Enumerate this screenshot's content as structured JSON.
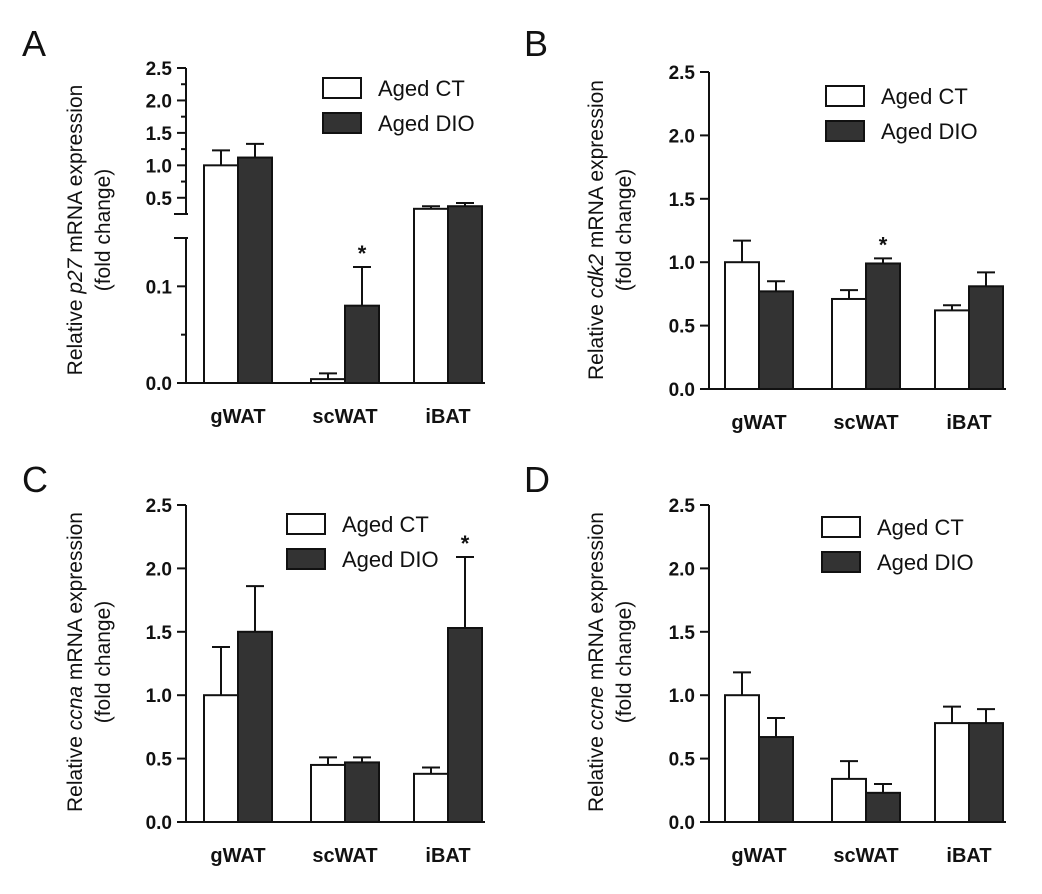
{
  "colors": {
    "ct_fill": "#ffffff",
    "dio_fill": "#333333",
    "stroke": "#111111"
  },
  "chart_data": [
    {
      "panel": "A",
      "type": "bar",
      "ylabel_parts": [
        "Relative ",
        "p27",
        " mRNA expression"
      ],
      "ylabel2": "(fold change)",
      "categories": [
        "gWAT",
        "scWAT",
        "iBAT"
      ],
      "axis_break": true,
      "lower_ticks": [
        "0.0",
        "0.1"
      ],
      "upper_ticks": [
        "0.5",
        "1.0",
        "1.5",
        "2.0",
        "2.5"
      ],
      "series": [
        {
          "name": "Aged CT",
          "values": [
            1.0,
            0.004,
            0.33
          ],
          "errors": [
            0.23,
            0.006,
            0.04
          ]
        },
        {
          "name": "Aged DIO",
          "values": [
            1.12,
            0.08,
            0.37
          ],
          "errors": [
            0.21,
            0.04,
            0.05
          ]
        }
      ],
      "significance": [
        {
          "category": "scWAT",
          "series": "Aged DIO",
          "label": "*"
        }
      ]
    },
    {
      "panel": "B",
      "type": "bar",
      "ylabel_parts": [
        "Relative ",
        "cdk2",
        " mRNA expression"
      ],
      "ylabel2": "(fold change)",
      "categories": [
        "gWAT",
        "scWAT",
        "iBAT"
      ],
      "ylim": [
        0,
        2.5
      ],
      "yticks": [
        "0.0",
        "0.5",
        "1.0",
        "1.5",
        "2.0",
        "2.5"
      ],
      "series": [
        {
          "name": "Aged CT",
          "values": [
            1.0,
            0.71,
            0.62
          ],
          "errors": [
            0.17,
            0.07,
            0.04
          ]
        },
        {
          "name": "Aged DIO",
          "values": [
            0.77,
            0.99,
            0.81
          ],
          "errors": [
            0.08,
            0.04,
            0.11
          ]
        }
      ],
      "significance": [
        {
          "category": "scWAT",
          "series": "Aged DIO",
          "label": "*"
        }
      ]
    },
    {
      "panel": "C",
      "type": "bar",
      "ylabel_parts": [
        "Relative ",
        "ccna",
        " mRNA expression"
      ],
      "ylabel2": "(fold change)",
      "categories": [
        "gWAT",
        "scWAT",
        "iBAT"
      ],
      "ylim": [
        0,
        2.5
      ],
      "yticks": [
        "0.0",
        "0.5",
        "1.0",
        "1.5",
        "2.0",
        "2.5"
      ],
      "series": [
        {
          "name": "Aged CT",
          "values": [
            1.0,
            0.45,
            0.38
          ],
          "errors": [
            0.38,
            0.06,
            0.05
          ]
        },
        {
          "name": "Aged DIO",
          "values": [
            1.5,
            0.47,
            1.53
          ],
          "errors": [
            0.36,
            0.04,
            0.56
          ]
        }
      ],
      "significance": [
        {
          "category": "iBAT",
          "series": "Aged DIO",
          "label": "*"
        }
      ]
    },
    {
      "panel": "D",
      "type": "bar",
      "ylabel_parts": [
        "Relative ",
        "ccne",
        " mRNA expression"
      ],
      "ylabel2": "(fold change)",
      "categories": [
        "gWAT",
        "scWAT",
        "iBAT"
      ],
      "ylim": [
        0,
        2.5
      ],
      "yticks": [
        "0.0",
        "0.5",
        "1.0",
        "1.5",
        "2.0",
        "2.5"
      ],
      "series": [
        {
          "name": "Aged CT",
          "values": [
            1.0,
            0.34,
            0.78
          ],
          "errors": [
            0.18,
            0.14,
            0.13
          ]
        },
        {
          "name": "Aged DIO",
          "values": [
            0.67,
            0.23,
            0.78
          ],
          "errors": [
            0.15,
            0.07,
            0.11
          ]
        }
      ],
      "significance": []
    }
  ]
}
